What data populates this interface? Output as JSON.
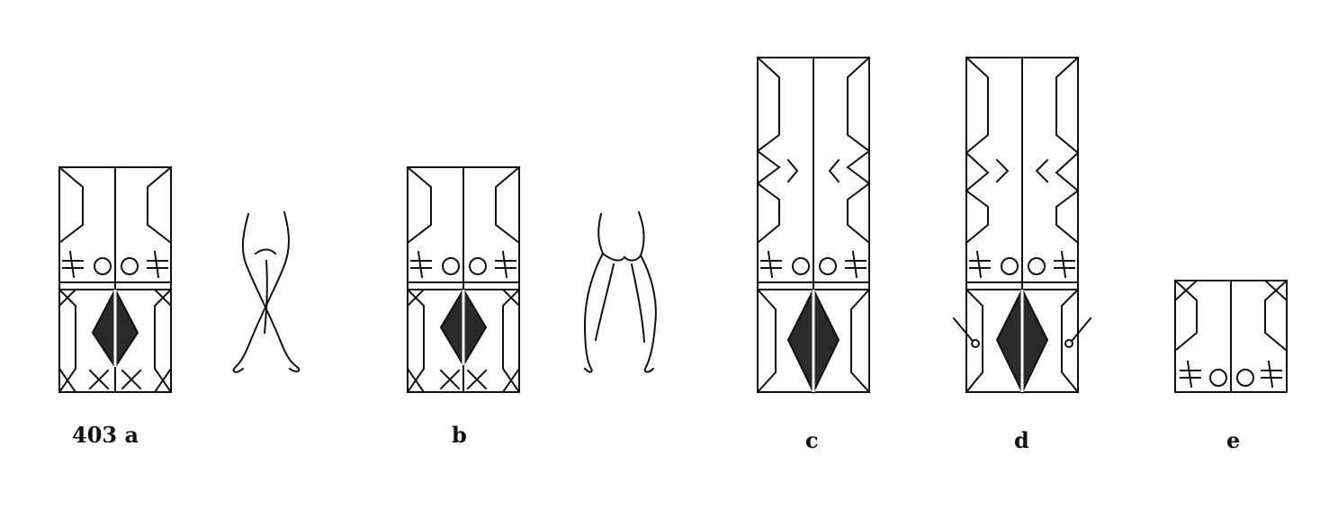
{
  "figure": {
    "labels": {
      "a": "403 a",
      "b": "b",
      "c": "c",
      "d": "d",
      "e": "e"
    },
    "ink_color": "#111111",
    "fill_color": "#2a2a2a"
  }
}
